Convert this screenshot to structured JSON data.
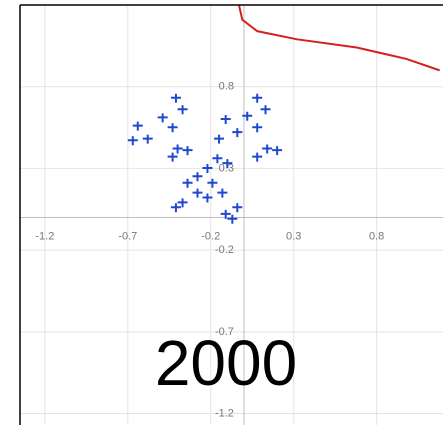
{
  "chart_data": {
    "type": "scatter",
    "annotation": "2000",
    "xlim": [
      -1.35,
      1.2
    ],
    "ylim": [
      -1.27,
      1.3
    ],
    "xticks": [
      -1.2,
      -0.7,
      -0.2,
      0.3,
      0.8
    ],
    "yticks": [
      -1.2,
      -0.7,
      -0.2,
      0.3,
      0.8
    ],
    "grid": true,
    "series": [
      {
        "type": "scatter",
        "color": "#1f48d0",
        "x": [
          -0.41,
          -0.37,
          -0.49,
          -0.64,
          -0.58,
          -0.67,
          -0.43,
          -0.4,
          -0.43,
          -0.34,
          0.08,
          0.13,
          0.02,
          -0.11,
          -0.04,
          -0.15,
          0.08,
          0.14,
          0.08,
          0.2,
          -0.34,
          -0.28,
          -0.37,
          -0.41,
          -0.22,
          -0.19,
          -0.13,
          -0.07,
          -0.11,
          -0.04,
          -0.16,
          -0.1,
          -0.22,
          -0.28
        ],
        "values": [
          0.72,
          0.65,
          0.6,
          0.55,
          0.47,
          0.46,
          0.54,
          0.41,
          0.36,
          0.4,
          0.72,
          0.65,
          0.61,
          0.59,
          0.51,
          0.47,
          0.54,
          0.41,
          0.36,
          0.4,
          0.2,
          0.24,
          0.08,
          0.05,
          0.29,
          0.2,
          0.14,
          -0.02,
          0.01,
          0.05,
          0.35,
          0.32,
          0.11,
          0.14
        ]
      },
      {
        "type": "line",
        "color": "#d42020",
        "x": [
          -0.03,
          -0.01,
          0.08,
          0.32,
          0.68,
          0.98,
          1.18
        ],
        "values": [
          1.3,
          1.21,
          1.14,
          1.09,
          1.04,
          0.97,
          0.9
        ]
      }
    ]
  }
}
